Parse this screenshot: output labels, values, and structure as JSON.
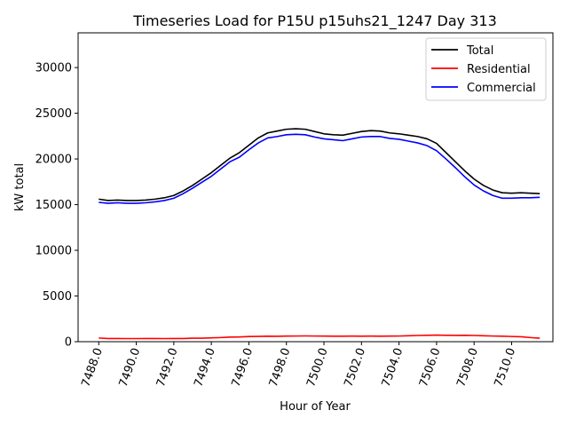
{
  "chart_data": {
    "type": "line",
    "title": "Timeseries Load for P15U p15uhs21_1247  Day 313",
    "xlabel": "Hour of Year",
    "ylabel": "kW total",
    "xlim": [
      7486.9,
      7512.2
    ],
    "ylim": [
      0,
      33800
    ],
    "xticks": [
      7488,
      7490,
      7492,
      7494,
      7496,
      7498,
      7500,
      7502,
      7504,
      7506,
      7508,
      7510
    ],
    "xtick_labels": [
      "7488.0",
      "7490.0",
      "7492.0",
      "7494.0",
      "7496.0",
      "7498.0",
      "7500.0",
      "7502.0",
      "7504.0",
      "7506.0",
      "7508.0",
      "7510.0"
    ],
    "yticks": [
      0,
      5000,
      10000,
      15000,
      20000,
      25000,
      30000
    ],
    "ytick_labels": [
      "0",
      "5000",
      "10000",
      "15000",
      "20000",
      "25000",
      "30000"
    ],
    "grid": false,
    "legend_position": "top-right",
    "x": [
      7488.0,
      7488.5,
      7489.0,
      7489.5,
      7490.0,
      7490.5,
      7491.0,
      7491.5,
      7492.0,
      7492.5,
      7493.0,
      7493.5,
      7494.0,
      7494.5,
      7495.0,
      7495.5,
      7496.0,
      7496.5,
      7497.0,
      7497.5,
      7498.0,
      7498.5,
      7499.0,
      7499.5,
      7500.0,
      7500.5,
      7501.0,
      7501.5,
      7502.0,
      7502.5,
      7503.0,
      7503.5,
      7504.0,
      7504.5,
      7505.0,
      7505.5,
      7506.0,
      7506.5,
      7507.0,
      7507.5,
      7508.0,
      7508.5,
      7509.0,
      7509.5,
      7510.0,
      7510.5,
      7511.0,
      7511.5
    ],
    "series": [
      {
        "name": "Total",
        "color": "#000000",
        "values": [
          15600,
          15450,
          15500,
          15450,
          15450,
          15500,
          15600,
          15750,
          16000,
          16500,
          17100,
          17800,
          18500,
          19300,
          20100,
          20700,
          21500,
          22300,
          22850,
          23050,
          23250,
          23300,
          23250,
          23000,
          22750,
          22650,
          22600,
          22800,
          23000,
          23100,
          23050,
          22850,
          22750,
          22600,
          22450,
          22200,
          21700,
          20700,
          19700,
          18700,
          17800,
          17100,
          16600,
          16300,
          16250,
          16300,
          16250,
          16200
        ]
      },
      {
        "name": "Residential",
        "color": "#ff0000",
        "values": [
          400,
          350,
          350,
          340,
          340,
          350,
          350,
          340,
          350,
          350,
          380,
          380,
          420,
          450,
          500,
          520,
          560,
          580,
          600,
          590,
          610,
          620,
          630,
          620,
          610,
          600,
          600,
          610,
          600,
          610,
          600,
          610,
          620,
          650,
          680,
          700,
          720,
          700,
          690,
          700,
          680,
          650,
          620,
          600,
          570,
          540,
          450,
          380
        ]
      },
      {
        "name": "Commercial",
        "color": "#0000ff",
        "values": [
          15250,
          15150,
          15200,
          15150,
          15150,
          15200,
          15300,
          15450,
          15700,
          16200,
          16800,
          17450,
          18100,
          18900,
          19700,
          20200,
          21000,
          21750,
          22300,
          22450,
          22650,
          22700,
          22650,
          22400,
          22200,
          22100,
          22000,
          22200,
          22400,
          22450,
          22450,
          22250,
          22150,
          21950,
          21750,
          21450,
          20900,
          20000,
          19050,
          18050,
          17150,
          16500,
          16000,
          15700,
          15700,
          15750,
          15750,
          15800
        ]
      }
    ]
  }
}
